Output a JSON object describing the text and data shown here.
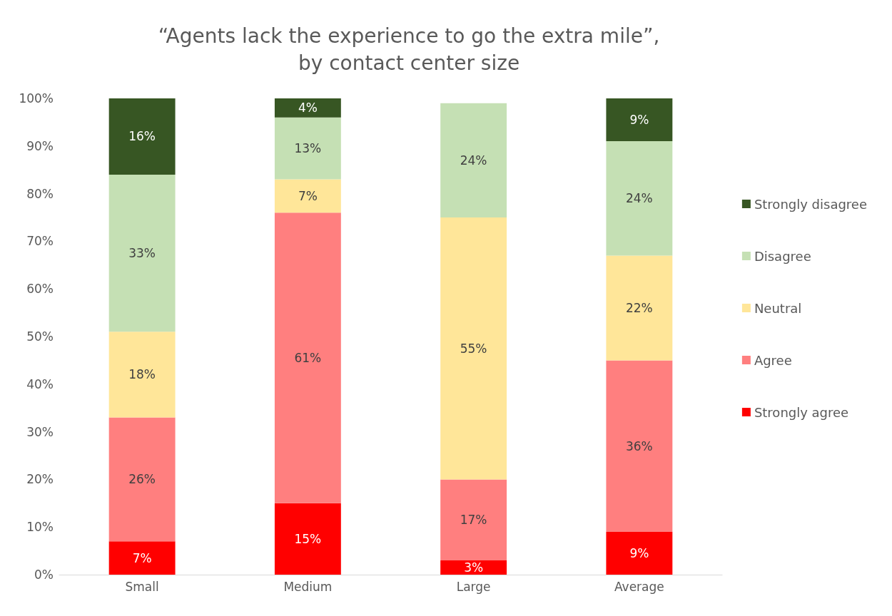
{
  "chart_data": {
    "type": "bar",
    "title": "“Agents lack the experience to go the extra mile”,\nby contact center size",
    "categories": [
      "Small",
      "Medium",
      "Large",
      "Average"
    ],
    "stacked": true,
    "legend": "right",
    "grid": false,
    "ylim": [
      0,
      100
    ],
    "yticks": [
      {
        "value": 0,
        "label": "0%"
      },
      {
        "value": 10,
        "label": "10%"
      },
      {
        "value": 20,
        "label": "20%"
      },
      {
        "value": 30,
        "label": "30%"
      },
      {
        "value": 40,
        "label": "40%"
      },
      {
        "value": 50,
        "label": "50%"
      },
      {
        "value": 60,
        "label": "60%"
      },
      {
        "value": 70,
        "label": "70%"
      },
      {
        "value": 80,
        "label": "80%"
      },
      {
        "value": 90,
        "label": "90%"
      },
      {
        "value": 100,
        "label": "100%"
      }
    ],
    "series": [
      {
        "name": "Strongly agree",
        "color": "#ff0000",
        "values": [
          7,
          15,
          3,
          9
        ],
        "value_labels": [
          "7%",
          "15%",
          "3%",
          "9%"
        ]
      },
      {
        "name": "Agree",
        "color": "#ff7f7f",
        "values": [
          26,
          61,
          17,
          36
        ],
        "value_labels": [
          "26%",
          "61%",
          "17%",
          "36%"
        ]
      },
      {
        "name": "Neutral",
        "color": "#ffe699",
        "values": [
          18,
          7,
          55,
          22
        ],
        "value_labels": [
          "18%",
          "7%",
          "55%",
          "22%"
        ]
      },
      {
        "name": "Disagree",
        "color": "#c5e0b4",
        "values": [
          33,
          13,
          24,
          24
        ],
        "value_labels": [
          "33%",
          "13%",
          "24%",
          "24%"
        ]
      },
      {
        "name": "Strongly disagree",
        "color": "#375623",
        "values": [
          16,
          4,
          null,
          9
        ],
        "value_labels": [
          "16%",
          "4%",
          null,
          "9%"
        ]
      }
    ]
  }
}
